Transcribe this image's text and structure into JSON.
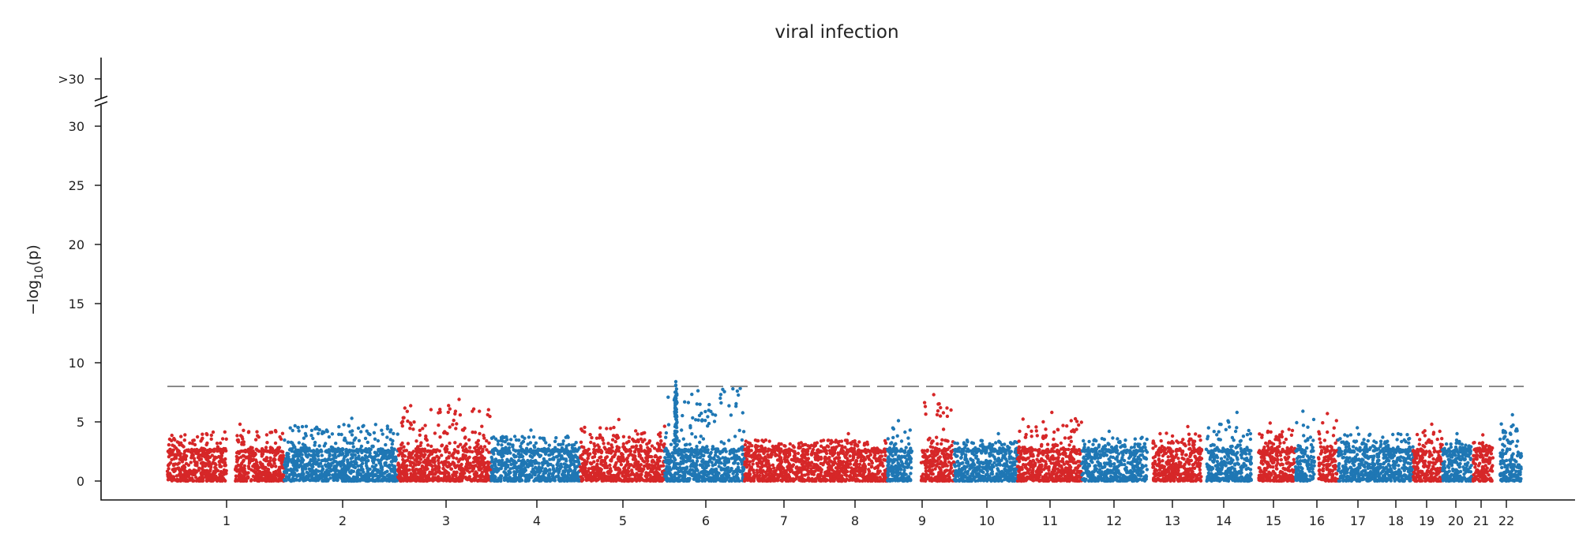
{
  "chart_data": {
    "type": "scatter",
    "title": "viral infection",
    "ylabel": "−log10(p)",
    "ylabel_main": "−log",
    "ylabel_sub": "10",
    "ylabel_tail": "(p)",
    "xlabel": "",
    "ylim": [
      0,
      31
    ],
    "yticks": [
      0,
      5,
      10,
      15,
      20,
      25,
      30
    ],
    "cap_label": ">30",
    "threshold": 8.0,
    "colors": {
      "odd": "#d62728",
      "even": "#1f77b4",
      "threshold": "#8a8a8a"
    },
    "grid": false,
    "legend": "none",
    "chromosomes": [
      {
        "label": "1",
        "color": "#d62728",
        "peak": 4.8
      },
      {
        "label": "2",
        "color": "#1f77b4",
        "peak": 5.3
      },
      {
        "label": "3",
        "color": "#d62728",
        "peak": 6.9
      },
      {
        "label": "4",
        "color": "#1f77b4",
        "peak": 4.3
      },
      {
        "label": "5",
        "color": "#d62728",
        "peak": 5.2
      },
      {
        "label": "6",
        "color": "#1f77b4",
        "peak": 8.4
      },
      {
        "label": "7",
        "color": "#d62728",
        "peak": 4.0
      },
      {
        "label": "8",
        "color": "#1f77b4",
        "peak": 5.1
      },
      {
        "label": "9",
        "color": "#d62728",
        "peak": 7.3
      },
      {
        "label": "10",
        "color": "#1f77b4",
        "peak": 4.0
      },
      {
        "label": "11",
        "color": "#d62728",
        "peak": 5.8
      },
      {
        "label": "12",
        "color": "#1f77b4",
        "peak": 4.2
      },
      {
        "label": "13",
        "color": "#d62728",
        "peak": 4.6
      },
      {
        "label": "14",
        "color": "#1f77b4",
        "peak": 5.8
      },
      {
        "label": "15",
        "color": "#d62728",
        "peak": 4.9
      },
      {
        "label": "16",
        "color": "#1f77b4",
        "peak": 5.9
      },
      {
        "label": "17",
        "color": "#d62728",
        "peak": 5.7
      },
      {
        "label": "18",
        "color": "#1f77b4",
        "peak": 4.5
      },
      {
        "label": "19",
        "color": "#d62728",
        "peak": 4.8
      },
      {
        "label": "20",
        "color": "#1f77b4",
        "peak": 4.0
      },
      {
        "label": "21",
        "color": "#d62728",
        "peak": 3.9
      },
      {
        "label": "22",
        "color": "#1f77b4",
        "peak": 5.6
      }
    ]
  }
}
